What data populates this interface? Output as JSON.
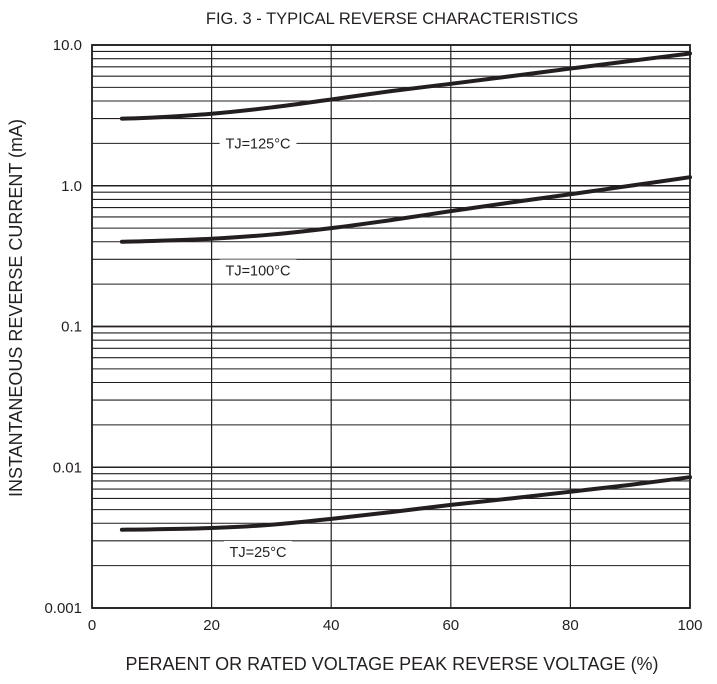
{
  "chart_data": {
    "type": "line",
    "title": "FIG. 3 - TYPICAL REVERSE CHARACTERISTICS",
    "xlabel": "PERAENT OR RATED VOLTAGE PEAK REVERSE VOLTAGE (%)",
    "ylabel": "INSTANTANEOUS REVERSE CURRENT (mA)",
    "xlim": [
      0,
      100
    ],
    "ylim": [
      0.001,
      10.0
    ],
    "yscale": "log",
    "grid": true,
    "x_ticks": [
      "0",
      "20",
      "40",
      "60",
      "80",
      "100"
    ],
    "y_ticks": [
      "10.0",
      "1.0",
      "0.1",
      "0.01",
      "0.001"
    ],
    "series": [
      {
        "name": "TJ=125°C",
        "x": [
          5,
          10,
          20,
          30,
          40,
          50,
          60,
          70,
          80,
          90,
          100
        ],
        "y": [
          3.0,
          3.05,
          3.25,
          3.6,
          4.1,
          4.7,
          5.3,
          6.0,
          6.8,
          7.7,
          8.7
        ]
      },
      {
        "name": "TJ=100°C",
        "x": [
          5,
          10,
          20,
          30,
          40,
          50,
          60,
          70,
          80,
          90,
          100
        ],
        "y": [
          0.4,
          0.405,
          0.42,
          0.45,
          0.5,
          0.57,
          0.66,
          0.76,
          0.87,
          1.0,
          1.15
        ]
      },
      {
        "name": "TJ=25°C",
        "x": [
          5,
          10,
          20,
          30,
          40,
          50,
          60,
          70,
          80,
          90,
          100
        ],
        "y": [
          0.0036,
          0.00362,
          0.0037,
          0.0039,
          0.0043,
          0.0048,
          0.0054,
          0.006,
          0.0067,
          0.0075,
          0.0085
        ]
      }
    ],
    "colors": {
      "line": "#231f20",
      "grid": "#231f20",
      "background": "#ffffff"
    }
  }
}
